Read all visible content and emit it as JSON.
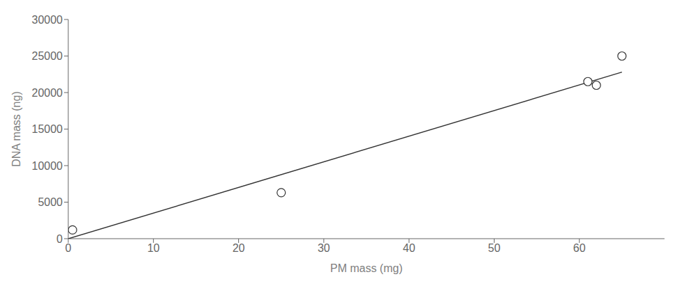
{
  "chart_data": {
    "type": "scatter",
    "xlabel": "PM mass (mg)",
    "ylabel": "DNA mass (ng)",
    "xlim": [
      0,
      70
    ],
    "ylim": [
      0,
      30000
    ],
    "xticks": [
      0,
      10,
      20,
      30,
      40,
      50,
      60
    ],
    "yticks": [
      0,
      5000,
      10000,
      15000,
      20000,
      25000,
      30000
    ],
    "grid": false,
    "series": [
      {
        "type": "line",
        "x": [
          0,
          65
        ],
        "values": [
          0,
          22800
        ],
        "color": "#333333",
        "line_style": "solid"
      },
      {
        "type": "scatter",
        "x": [
          0.5,
          25,
          61,
          62,
          65
        ],
        "values": [
          1200,
          6300,
          21500,
          21000,
          25000
        ],
        "color": "#333333",
        "marker": "hollow circle"
      }
    ]
  }
}
